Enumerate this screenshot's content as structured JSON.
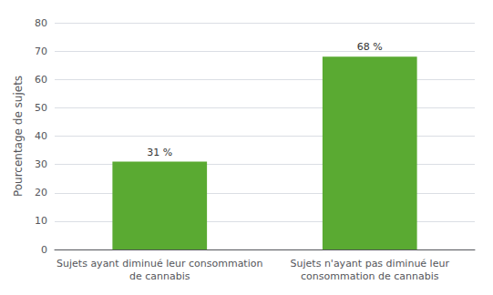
{
  "chart_data": {
    "type": "bar",
    "categories": [
      "Sujets ayant diminué leur consommation\nde cannabis",
      "Sujets n'ayant pas diminué leur\nconsommation de cannabis"
    ],
    "values": [
      31,
      68
    ],
    "value_labels": [
      "31 %",
      "68 %"
    ],
    "data_labels": true,
    "color": "#5aaa32",
    "ylabel": "Pourcentage de sujets",
    "ylim": [
      0,
      80
    ],
    "yticks": [
      0,
      10,
      20,
      30,
      40,
      50,
      60,
      70,
      80
    ],
    "grid": true
  }
}
